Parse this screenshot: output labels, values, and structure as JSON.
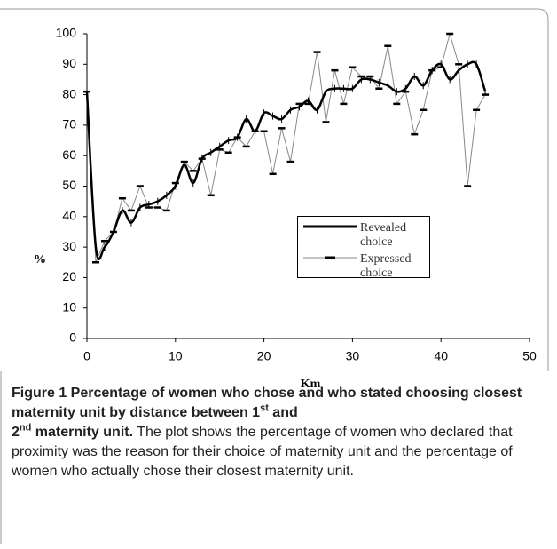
{
  "chart_data": {
    "type": "line",
    "x_label": "Km",
    "y_label": "%",
    "x": [
      0,
      1,
      2,
      3,
      4,
      5,
      6,
      7,
      8,
      9,
      10,
      11,
      12,
      13,
      14,
      15,
      16,
      17,
      18,
      19,
      20,
      21,
      22,
      23,
      24,
      25,
      26,
      27,
      28,
      29,
      30,
      31,
      32,
      33,
      34,
      35,
      36,
      37,
      38,
      39,
      40,
      41,
      42,
      43,
      44,
      45
    ],
    "series": [
      {
        "name": "Revealed choice",
        "color": "#000000",
        "values": [
          81,
          30,
          30,
          35,
          42,
          38,
          43,
          44,
          45,
          47,
          50,
          57,
          51,
          59,
          61,
          63,
          65,
          66,
          72,
          68,
          74,
          73,
          72,
          75,
          76,
          78,
          75,
          81,
          82,
          82,
          82,
          85,
          85,
          84,
          83,
          81,
          82,
          86,
          83,
          88,
          90,
          85,
          88,
          90,
          90,
          81
        ]
      },
      {
        "name": "Expressed choice",
        "color": "#888888",
        "values": [
          81,
          25,
          32,
          35,
          46,
          42,
          50,
          43,
          43,
          42,
          51,
          58,
          55,
          59,
          47,
          62,
          61,
          66,
          63,
          68,
          68,
          54,
          69,
          58,
          77,
          77,
          94,
          71,
          88,
          77,
          89,
          86,
          86,
          82,
          96,
          77,
          81,
          67,
          75,
          88,
          89,
          100,
          90,
          50,
          75,
          80
        ]
      }
    ],
    "xlim": [
      0,
      50
    ],
    "xticks": [
      0,
      10,
      20,
      30,
      40,
      50
    ],
    "ylim": [
      0,
      100
    ],
    "yticks": [
      0,
      10,
      20,
      30,
      40,
      50,
      60,
      70,
      80,
      90,
      100
    ],
    "grid": false
  },
  "caption": {
    "title_segments": [
      "Figure 1 Percentage of women who chose and who stated choosing closest maternity unit by distance between 1",
      "st",
      " and ",
      "2",
      "nd",
      " maternity unit."
    ],
    "body": "The plot shows the percentage of women who declared that proximity was the reason for their choice of maternity unit and the percentage of women who actually chose their closest maternity unit."
  }
}
